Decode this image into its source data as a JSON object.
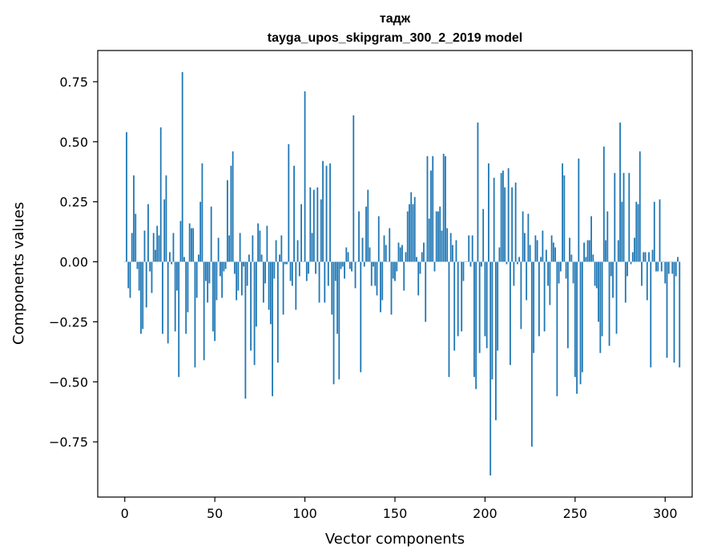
{
  "chart_data": {
    "type": "bar",
    "title": "тадж",
    "subtitle": "tayga_upos_skipgram_300_2_2019 model",
    "xlabel": "Vector components",
    "ylabel": "Components values",
    "xlim": [
      -15,
      315
    ],
    "ylim": [
      -0.98,
      0.88
    ],
    "xticks": [
      0,
      50,
      100,
      150,
      200,
      250,
      300
    ],
    "yticks": [
      -0.75,
      -0.5,
      -0.25,
      0.0,
      0.25,
      0.5,
      0.75
    ],
    "ytick_labels": [
      "−0.75",
      "−0.50",
      "−0.25",
      "0.00",
      "0.25",
      "0.50",
      "0.75"
    ],
    "bar_color": "#1f77b4",
    "grid": false,
    "values": [
      0.0,
      0.54,
      -0.11,
      -0.15,
      0.12,
      0.36,
      0.2,
      -0.03,
      -0.12,
      -0.3,
      -0.28,
      0.13,
      -0.19,
      0.24,
      -0.04,
      -0.13,
      0.12,
      0.05,
      0.15,
      0.11,
      0.56,
      -0.3,
      0.26,
      0.36,
      -0.34,
      0.04,
      -0.01,
      0.12,
      -0.29,
      -0.12,
      -0.48,
      0.17,
      0.79,
      0.02,
      -0.3,
      -0.21,
      0.16,
      0.14,
      0.14,
      -0.44,
      -0.15,
      0.03,
      0.25,
      0.41,
      -0.41,
      -0.08,
      -0.17,
      -0.09,
      0.23,
      -0.29,
      -0.33,
      -0.16,
      0.1,
      -0.06,
      -0.15,
      -0.04,
      -0.03,
      0.34,
      0.11,
      0.4,
      0.46,
      -0.05,
      -0.16,
      -0.12,
      0.12,
      -0.14,
      -0.02,
      -0.57,
      -0.1,
      0.03,
      -0.37,
      0.11,
      -0.43,
      -0.27,
      0.16,
      0.13,
      0.03,
      -0.17,
      -0.09,
      0.15,
      -0.2,
      -0.26,
      -0.56,
      -0.07,
      0.09,
      -0.42,
      0.03,
      0.11,
      -0.22,
      -0.01,
      -0.01,
      0.49,
      -0.08,
      -0.1,
      0.4,
      -0.2,
      0.09,
      -0.06,
      0.24,
      0.0,
      0.71,
      -0.08,
      -0.05,
      0.31,
      0.12,
      0.3,
      -0.05,
      0.31,
      -0.17,
      0.26,
      0.42,
      -0.17,
      0.4,
      -0.1,
      0.41,
      -0.22,
      -0.51,
      -0.08,
      -0.3,
      -0.49,
      -0.03,
      -0.02,
      -0.07,
      0.06,
      0.04,
      -0.03,
      -0.04,
      0.61,
      -0.11,
      0.0,
      0.21,
      -0.46,
      0.1,
      -0.02,
      0.23,
      0.3,
      0.06,
      -0.1,
      -0.02,
      -0.1,
      -0.14,
      0.19,
      -0.21,
      -0.16,
      0.11,
      0.07,
      0.0,
      0.14,
      -0.22,
      -0.07,
      -0.08,
      -0.04,
      0.08,
      0.06,
      0.07,
      -0.12,
      0.04,
      0.21,
      0.24,
      0.29,
      0.24,
      0.27,
      0.02,
      -0.14,
      -0.05,
      0.04,
      0.08,
      -0.25,
      0.44,
      0.18,
      0.38,
      0.44,
      -0.04,
      0.21,
      0.21,
      0.23,
      0.13,
      0.45,
      0.44,
      0.14,
      -0.48,
      0.12,
      0.07,
      -0.37,
      0.09,
      -0.31,
      0.0,
      -0.29,
      -0.08,
      0.0,
      0.0,
      0.11,
      -0.02,
      0.11,
      -0.48,
      -0.53,
      0.58,
      -0.38,
      -0.02,
      0.22,
      -0.31,
      -0.36,
      0.41,
      -0.89,
      -0.49,
      0.35,
      -0.66,
      -0.37,
      0.06,
      0.37,
      0.38,
      0.31,
      -0.01,
      0.39,
      -0.43,
      0.31,
      -0.1,
      0.33,
      -0.01,
      0.02,
      -0.28,
      0.21,
      0.12,
      -0.16,
      0.2,
      0.07,
      -0.77,
      -0.38,
      0.11,
      0.09,
      -0.31,
      0.02,
      0.13,
      -0.29,
      0.05,
      -0.1,
      -0.18,
      0.11,
      0.08,
      0.06,
      -0.56,
      -0.09,
      -0.04,
      0.41,
      0.36,
      -0.07,
      -0.36,
      0.1,
      0.03,
      -0.09,
      -0.48,
      -0.55,
      0.43,
      -0.51,
      -0.46,
      0.08,
      0.02,
      0.09,
      0.09,
      0.19,
      0.03,
      -0.1,
      -0.11,
      -0.25,
      -0.38,
      -0.31,
      0.48,
      0.09,
      0.21,
      -0.35,
      -0.06,
      -0.15,
      0.37,
      -0.3,
      0.09,
      0.58,
      0.25,
      0.37,
      -0.17,
      -0.06,
      0.37,
      -0.01,
      0.04,
      0.1,
      0.25,
      0.24,
      0.46,
      -0.1,
      0.04,
      0.04,
      -0.16,
      0.04,
      -0.44,
      0.05,
      0.25,
      -0.04,
      -0.04,
      0.26,
      -0.04,
      0.0,
      -0.09,
      -0.4,
      -0.05,
      0.0,
      -0.05,
      -0.42,
      -0.06,
      0.02,
      -0.44
    ]
  }
}
